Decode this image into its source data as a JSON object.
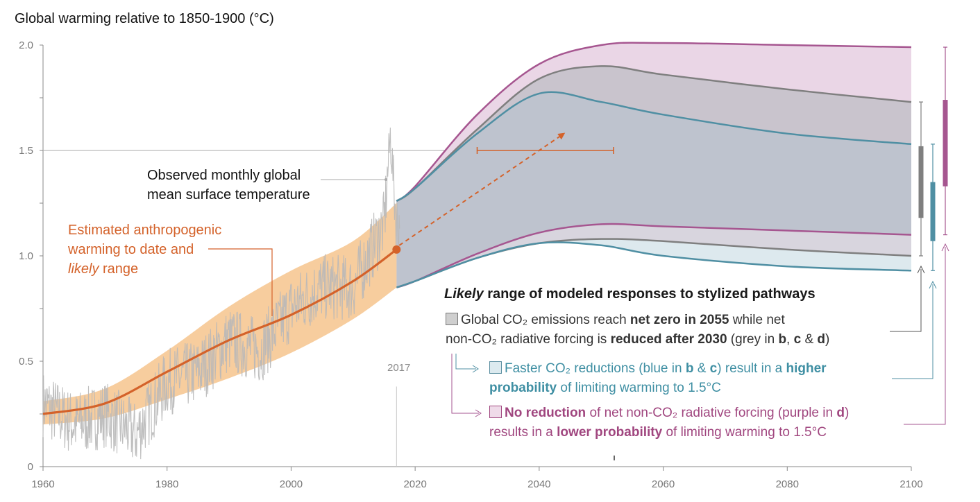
{
  "title": "Global warming relative to 1850-1900 (°C)",
  "annotations": {
    "observed_line1": "Observed monthly global",
    "observed_line2": "mean surface temperature",
    "estimated_line1": "Estimated anthropogenic",
    "estimated_line2": "warming to date and",
    "estimated_line3_italic": "likely",
    "estimated_line3_rest": " range",
    "year_marker": "2017"
  },
  "legend": {
    "title_italic": "Likely",
    "title_rest": " range of modeled responses to stylized pathways",
    "grey": {
      "line1_a": "Global CO₂ emissions reach ",
      "line1_b": "net zero in 2055",
      "line1_c": " while net",
      "line2_a": "non-CO₂ radiative forcing is ",
      "line2_b": "reduced after 2030",
      "line2_c": " (grey in ",
      "line2_d": "b",
      "line2_e": ", ",
      "line2_f": "c",
      "line2_g": " & ",
      "line2_h": "d",
      "line2_i": ")"
    },
    "blue": {
      "line1_a": "Faster CO₂ reductions (blue in ",
      "line1_b": "b",
      "line1_c": " & ",
      "line1_d": "c",
      "line1_e": ") result in a ",
      "line1_f": "higher",
      "line2_a": "probability",
      "line2_b": " of limiting warming to 1.5°C"
    },
    "purple": {
      "line1_a": "No reduction",
      "line1_b": " of net non-CO₂ radiative forcing (purple in ",
      "line1_c": "d",
      "line1_d": ")",
      "line2_a": "results in a ",
      "line2_b": "lower probability",
      "line2_c": " of limiting warming to 1.5°C"
    }
  },
  "colors": {
    "observed": "#b8b8b8",
    "anthropogenic": "#d4622a",
    "anthro_band": "#f6c48d",
    "grey": "#7f7f7f",
    "blue": "#4f8fa3",
    "purple": "#a65690",
    "grey_fill": "#9ea3ae",
    "blue_fill": "#dde9ee",
    "purple_fill": "#ead6e6"
  },
  "chart_data": {
    "type": "line",
    "title": "Global warming relative to 1850-1900 (°C)",
    "xlim": [
      1960,
      2100
    ],
    "ylim": [
      0,
      2.0
    ],
    "x_ticks": [
      1960,
      1980,
      2000,
      2020,
      2040,
      2060,
      2080,
      2100
    ],
    "y_ticks": [
      {
        "v": 0,
        "label": "0"
      },
      {
        "v": 0.5,
        "label": "0.5"
      },
      {
        "v": 1.0,
        "label": "1.0"
      },
      {
        "v": 1.5,
        "label": "1.5"
      },
      {
        "v": 2.0,
        "label": "2.0"
      }
    ],
    "reference_line": 1.5,
    "anthropogenic": {
      "x": [
        1960,
        1970,
        1980,
        1990,
        2000,
        2010,
        2017
      ],
      "y": [
        0.25,
        0.3,
        0.45,
        0.6,
        0.72,
        0.88,
        1.03
      ],
      "band_low": [
        0.2,
        0.23,
        0.32,
        0.42,
        0.54,
        0.7,
        0.85
      ],
      "band_high": [
        0.31,
        0.37,
        0.55,
        0.76,
        0.93,
        1.07,
        1.25
      ]
    },
    "observed_monthly_approx": {
      "x": [
        1960,
        1965,
        1970,
        1975,
        1980,
        1985,
        1990,
        1995,
        2000,
        2005,
        2010,
        2015,
        2016,
        2017
      ],
      "y": [
        0.3,
        0.2,
        0.25,
        0.15,
        0.4,
        0.45,
        0.6,
        0.55,
        0.75,
        0.85,
        0.85,
        1.15,
        1.57,
        1.15
      ]
    },
    "projection_x": [
      2017,
      2020,
      2030,
      2040,
      2050,
      2060,
      2080,
      2100
    ],
    "series": [
      {
        "name": "grey",
        "upper": [
          1.26,
          1.32,
          1.6,
          1.84,
          1.9,
          1.86,
          1.79,
          1.73
        ],
        "lower": [
          0.85,
          0.88,
          0.99,
          1.06,
          1.08,
          1.07,
          1.03,
          1.0
        ]
      },
      {
        "name": "blue",
        "upper": [
          1.26,
          1.32,
          1.58,
          1.77,
          1.73,
          1.67,
          1.58,
          1.53
        ],
        "lower": [
          0.85,
          0.88,
          0.99,
          1.06,
          1.05,
          1.0,
          0.95,
          0.93
        ]
      },
      {
        "name": "purple",
        "upper": [
          1.26,
          1.33,
          1.67,
          1.91,
          2.0,
          2.01,
          2.0,
          1.99
        ],
        "lower": [
          0.85,
          0.88,
          1.01,
          1.11,
          1.15,
          1.14,
          1.12,
          1.1
        ]
      }
    ],
    "crossing_range_1p5": {
      "x_start": 2030,
      "x_end": 2052,
      "y": 1.5
    },
    "trend_arrow": {
      "from": [
        2017,
        1.04
      ],
      "to": [
        2044,
        1.58
      ]
    },
    "right_bars": [
      {
        "name": "grey",
        "whisker": [
          1.0,
          1.73
        ],
        "box": [
          1.18,
          1.52
        ]
      },
      {
        "name": "blue",
        "whisker": [
          0.93,
          1.53
        ],
        "box": [
          1.07,
          1.35
        ]
      },
      {
        "name": "purple",
        "whisker": [
          1.1,
          1.99
        ],
        "box": [
          1.33,
          1.74
        ]
      }
    ]
  }
}
